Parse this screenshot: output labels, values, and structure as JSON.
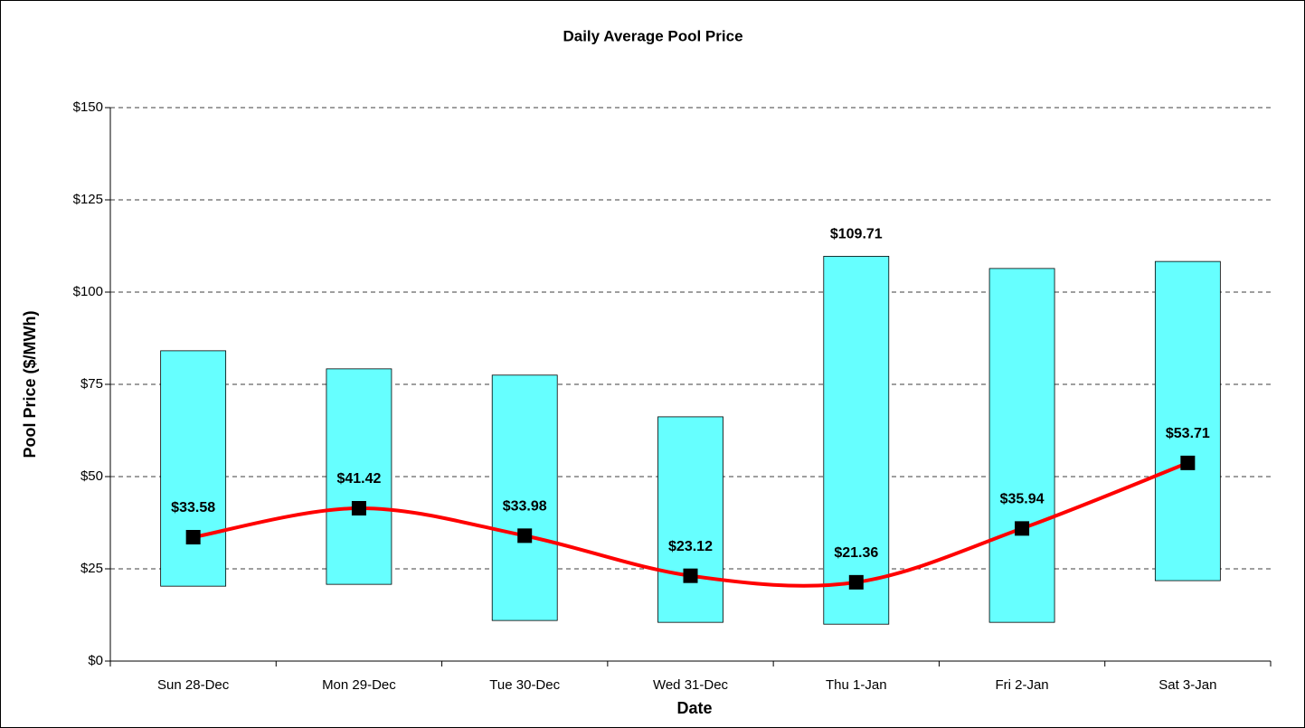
{
  "chart_data": {
    "type": "floating-bar",
    "title": "Daily Average Pool Price",
    "x_label": "Date",
    "y_label": "Pool Price ($/MWh)",
    "categories": [
      "Sun 28-Dec",
      "Mon 29-Dec",
      "Tue 30-Dec",
      "Wed 31-Dec",
      "Thu 1-Jan",
      "Fri 2-Jan",
      "Sat 3-Jan"
    ],
    "ranges": {
      "color": "#66ffff",
      "low": [
        20.3,
        20.8,
        11.0,
        10.5,
        10.0,
        10.5,
        21.8
      ],
      "high": [
        84.1,
        79.2,
        77.5,
        66.2,
        109.71,
        106.4,
        108.3
      ],
      "high_labels": [
        null,
        null,
        null,
        null,
        "$109.71",
        null,
        null
      ]
    },
    "average": {
      "marker_color": "#000000",
      "line_color": "#ff0000",
      "smooth": true,
      "values": [
        33.58,
        41.42,
        33.98,
        23.12,
        21.36,
        35.94,
        53.71
      ],
      "value_labels": [
        "$33.58",
        "$41.42",
        "$33.98",
        "$23.12",
        "$21.36",
        "$35.94",
        "$53.71"
      ]
    },
    "ylim": [
      0,
      150
    ],
    "yticks": [
      {
        "value": 0,
        "label": "$0"
      },
      {
        "value": 25,
        "label": "$25"
      },
      {
        "value": 50,
        "label": "$50"
      },
      {
        "value": 75,
        "label": "$75"
      },
      {
        "value": 100,
        "label": "$100"
      },
      {
        "value": 125,
        "label": "$125"
      },
      {
        "value": 150,
        "label": "$150"
      }
    ],
    "grid": true
  }
}
